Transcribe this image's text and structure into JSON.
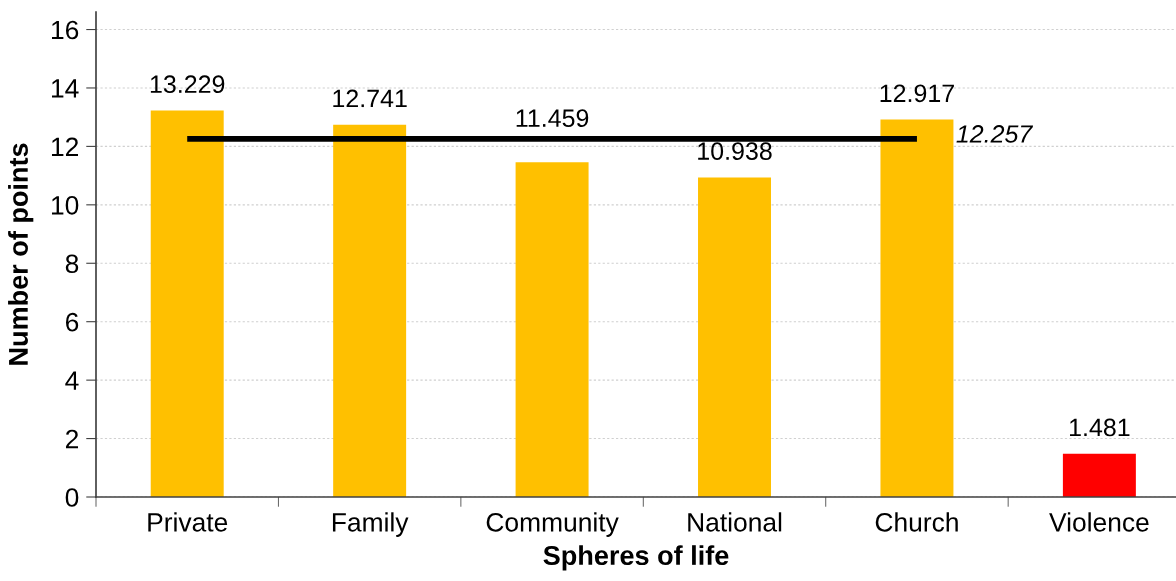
{
  "chart_data": {
    "type": "bar",
    "xlabel": "Spheres of life",
    "ylabel": "Number of points",
    "categories": [
      "Private",
      "Family",
      "Community",
      "National",
      "Church",
      "Violence"
    ],
    "series": [
      {
        "values": [
          13.229,
          12.741,
          11.459,
          10.938,
          12.917,
          1.481
        ],
        "colors": [
          "#ffc000",
          "#ffc000",
          "#ffc000",
          "#ffc000",
          "#ffc000",
          "#ff0000"
        ],
        "value_labels": [
          "13.229",
          "12.741",
          "11.459",
          "10.938",
          "12.917",
          "1.481"
        ]
      },
      {
        "type": "line",
        "color": "#000000",
        "values": [
          12.257,
          12.257,
          12.257,
          12.257,
          12.257,
          null
        ],
        "value_labels": [
          null,
          null,
          null,
          null,
          "12.257",
          null
        ]
      }
    ],
    "ylim": [
      0,
      16.6
    ],
    "yticks": [
      0,
      2,
      4,
      6,
      8,
      10,
      12,
      14,
      16
    ],
    "grid": "y",
    "legend": false
  }
}
